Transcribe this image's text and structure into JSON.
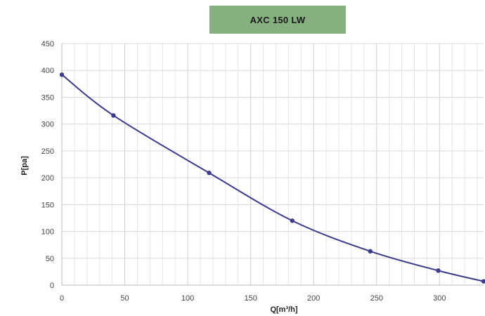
{
  "chart_data": {
    "type": "line",
    "title": "AXC 150 LW",
    "xlabel": "Q[m³/h]",
    "ylabel": "P[pa]",
    "xlim": [
      0,
      335
    ],
    "ylim": [
      0,
      450
    ],
    "x_ticks": [
      0,
      50,
      100,
      150,
      200,
      250,
      300
    ],
    "y_ticks": [
      0,
      50,
      100,
      150,
      200,
      250,
      300,
      350,
      400,
      450
    ],
    "grid": true,
    "series": [
      {
        "color": "#3b3b8c",
        "points": [
          {
            "x": 0,
            "y": 392
          },
          {
            "x": 41,
            "y": 316
          },
          {
            "x": 117,
            "y": 209
          },
          {
            "x": 183,
            "y": 120
          },
          {
            "x": 245,
            "y": 63
          },
          {
            "x": 299,
            "y": 27
          },
          {
            "x": 335,
            "y": 7
          }
        ]
      }
    ],
    "colors": {
      "title_bg": "#86b07f",
      "grid": "#d9d9d9",
      "axis": "#bdbdbd",
      "line": "#3b3b8c"
    }
  }
}
